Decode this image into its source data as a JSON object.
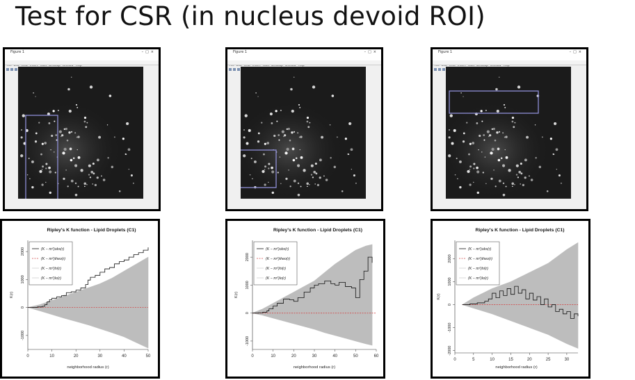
{
  "title": "Test for CSR (in nucleus devoid ROI)",
  "figure_window": {
    "title": "Figure 1",
    "menu": [
      "File",
      "Edit",
      "View",
      "Insert",
      "Tools",
      "Desktop",
      "Window",
      "Help"
    ]
  },
  "chart_data": [
    {
      "type": "line",
      "title": "Ripley's K function - Lipid Droplets (C1)",
      "xlabel": "neighborhood radius (r)",
      "ylabel": "K(r)",
      "xlim": [
        0,
        50
      ],
      "ylim": [
        -1500,
        2400
      ],
      "xticks": [
        0,
        10,
        20,
        30,
        40,
        50
      ],
      "yticks": [
        -1000,
        0,
        1000,
        2000
      ],
      "grid": false,
      "legend_position": "top-left",
      "legend": [
        "(K − πr²)obs(r)",
        "(K − πr²)theo(r)",
        "(K − πr²)hi(r)",
        "(K − πr²)lo(r)"
      ],
      "roi": "left vertical strip",
      "observed": {
        "x": [
          0,
          2,
          4,
          6,
          7,
          8,
          9,
          10,
          12,
          14,
          15,
          16,
          18,
          20,
          22,
          24,
          25,
          26,
          28,
          30,
          32,
          34,
          36,
          38,
          40,
          42,
          44,
          46,
          48,
          50
        ],
        "y": [
          0,
          5,
          20,
          40,
          100,
          200,
          280,
          330,
          380,
          420,
          430,
          530,
          560,
          620,
          700,
          820,
          980,
          1080,
          1150,
          1260,
          1380,
          1430,
          1560,
          1640,
          1700,
          1800,
          1890,
          1960,
          2050,
          2150
        ]
      },
      "envelope_hi": {
        "x": [
          0,
          5,
          10,
          15,
          20,
          25,
          30,
          35,
          40,
          45,
          50
        ],
        "y": [
          0,
          100,
          250,
          400,
          550,
          700,
          850,
          1050,
          1300,
          1550,
          1800
        ]
      },
      "envelope_lo": {
        "x": [
          0,
          5,
          10,
          15,
          20,
          25,
          30,
          35,
          40,
          45,
          50
        ],
        "y": [
          0,
          -120,
          -250,
          -380,
          -500,
          -620,
          -760,
          -900,
          -1050,
          -1250,
          -1450
        ]
      },
      "theo": 0
    },
    {
      "type": "line",
      "title": "Ripley's K function - Lipid Droplets (C1)",
      "xlabel": "neighborhood radius (r)",
      "ylabel": "K(r)",
      "xlim": [
        0,
        60
      ],
      "ylim": [
        -1300,
        2600
      ],
      "xticks": [
        0,
        10,
        20,
        30,
        40,
        50,
        60
      ],
      "yticks": [
        -1000,
        0,
        1000,
        2000
      ],
      "grid": false,
      "legend_position": "top-left",
      "legend": [
        "(K − πr²)obs(r)",
        "(K − πr²)theo(r)",
        "(K − πr²)hi(r)",
        "(K − πr²)lo(r)"
      ],
      "roi": "bottom-left box",
      "observed": {
        "x": [
          0,
          3,
          5,
          7,
          8,
          10,
          12,
          15,
          18,
          20,
          22,
          25,
          28,
          30,
          32,
          35,
          38,
          40,
          42,
          45,
          48,
          50,
          52,
          54,
          56,
          58
        ],
        "y": [
          0,
          10,
          30,
          80,
          150,
          250,
          350,
          500,
          480,
          420,
          550,
          750,
          900,
          1000,
          1050,
          1150,
          1050,
          1000,
          1100,
          950,
          900,
          550,
          1200,
          1500,
          2000,
          1800
        ]
      },
      "envelope_hi": {
        "x": [
          0,
          5,
          10,
          15,
          20,
          25,
          30,
          35,
          40,
          45,
          50,
          55,
          58
        ],
        "y": [
          0,
          150,
          350,
          550,
          750,
          950,
          1150,
          1450,
          1750,
          2000,
          2250,
          2400,
          2450
        ]
      },
      "envelope_lo": {
        "x": [
          0,
          5,
          10,
          15,
          20,
          25,
          30,
          35,
          40,
          45,
          50,
          55,
          58
        ],
        "y": [
          0,
          -80,
          -180,
          -280,
          -380,
          -480,
          -580,
          -700,
          -800,
          -900,
          -1000,
          -1100,
          -1150
        ]
      },
      "theo": 0
    },
    {
      "type": "line",
      "title": "Ripley's K function - Lipid Droplets (C1)",
      "xlabel": "neighborhood radius (r)",
      "ylabel": "K(r)",
      "xlim": [
        0,
        33
      ],
      "ylim": [
        -2100,
        2800
      ],
      "xticks": [
        0,
        5,
        10,
        15,
        20,
        25,
        30
      ],
      "yticks": [
        -2000,
        -1000,
        0,
        1000,
        2000
      ],
      "grid": false,
      "legend_position": "top-left",
      "legend": [
        "(K − πr²)obs(r)",
        "(K − πr²)theo(r)",
        "(K − πr²)hi(r)",
        "(K − πr²)lo(r)"
      ],
      "roi": "top horizontal strip",
      "observed": {
        "x": [
          2,
          4,
          6,
          8,
          9,
          10,
          11,
          12,
          13,
          14,
          15,
          16,
          17,
          18,
          19,
          20,
          21,
          22,
          23,
          24,
          25,
          26,
          27,
          28,
          29,
          30,
          31,
          32,
          33
        ],
        "y": [
          0,
          30,
          80,
          150,
          250,
          500,
          300,
          600,
          400,
          700,
          450,
          800,
          500,
          650,
          250,
          500,
          200,
          350,
          0,
          250,
          -100,
          0,
          -300,
          -200,
          -400,
          -300,
          -600,
          -400,
          -500
        ]
      },
      "envelope_hi": {
        "x": [
          2,
          5,
          10,
          15,
          20,
          25,
          30,
          33
        ],
        "y": [
          0,
          300,
          700,
          1000,
          1400,
          1800,
          2400,
          2700
        ]
      },
      "envelope_lo": {
        "x": [
          2,
          5,
          10,
          15,
          20,
          25,
          30,
          33
        ],
        "y": [
          0,
          -150,
          -400,
          -700,
          -1000,
          -1300,
          -1700,
          -1900
        ]
      },
      "theo": 0
    }
  ]
}
